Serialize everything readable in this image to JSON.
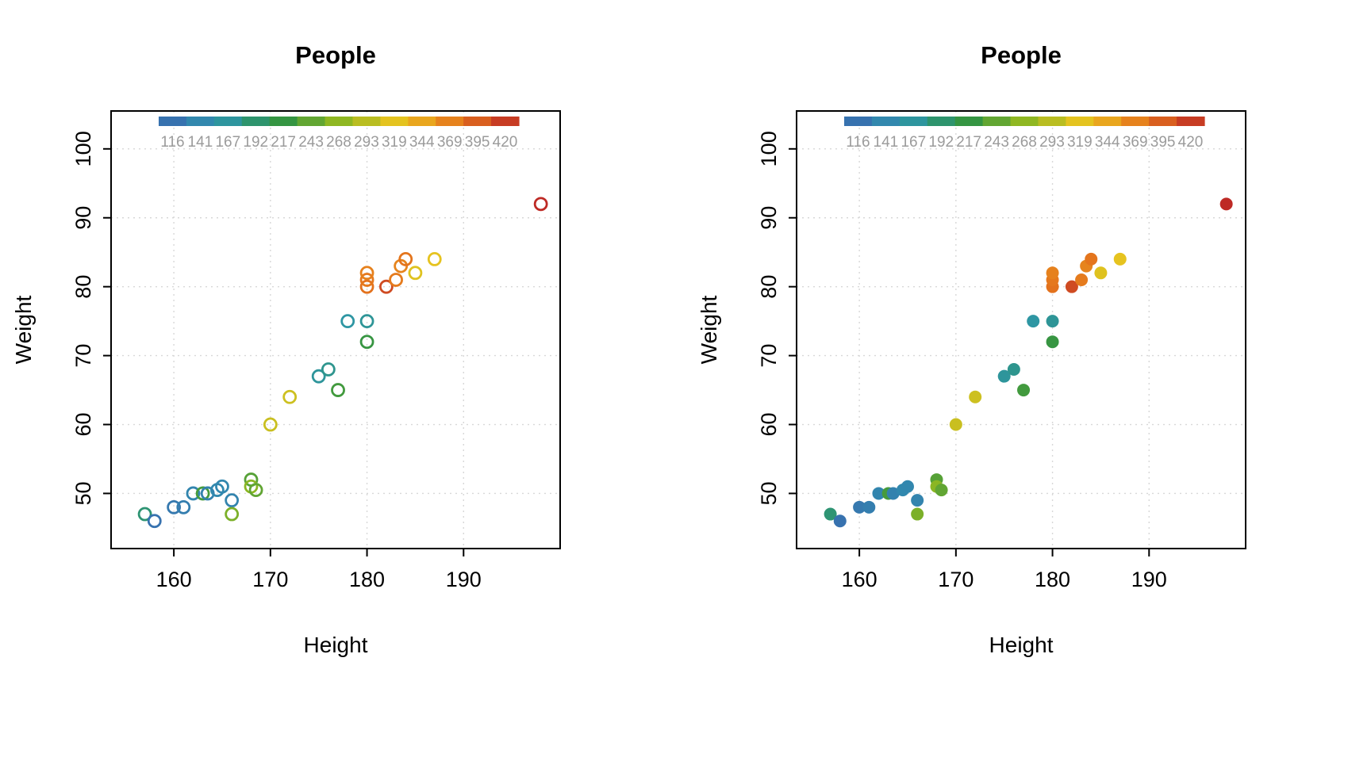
{
  "chart_data": {
    "type": "scatter",
    "title": "People",
    "xlabel": "Height",
    "ylabel": "Weight",
    "xlim": [
      153.5,
      200
    ],
    "ylim": [
      42,
      105.5
    ],
    "xticks": [
      160,
      170,
      180,
      190
    ],
    "yticks": [
      50,
      60,
      70,
      80,
      90,
      100
    ],
    "grid": true,
    "panels": [
      {
        "marker": "open",
        "description": "hollow circle markers (pch=1)"
      },
      {
        "marker": "filled",
        "description": "solid circle markers (pch=19)"
      }
    ],
    "colorbar": {
      "position": "top-inside",
      "min": 116,
      "max": 420,
      "tick_labels": [
        116,
        141,
        167,
        192,
        217,
        243,
        268,
        293,
        319,
        344,
        369,
        395,
        420
      ],
      "palette": [
        "#3A67AF",
        "#2E96AE",
        "#2E9245",
        "#8FB722",
        "#EBC41F",
        "#E5761D",
        "#BE2A25"
      ]
    },
    "points": [
      {
        "x": 157,
        "y": 47,
        "v": 195
      },
      {
        "x": 158,
        "y": 46,
        "v": 128
      },
      {
        "x": 160,
        "y": 48,
        "v": 135
      },
      {
        "x": 161,
        "y": 48,
        "v": 141
      },
      {
        "x": 162,
        "y": 50,
        "v": 148
      },
      {
        "x": 163,
        "y": 50,
        "v": 230
      },
      {
        "x": 163.5,
        "y": 50,
        "v": 145
      },
      {
        "x": 164.5,
        "y": 50.5,
        "v": 152
      },
      {
        "x": 165,
        "y": 51,
        "v": 150
      },
      {
        "x": 166,
        "y": 49,
        "v": 147
      },
      {
        "x": 166,
        "y": 47,
        "v": 258
      },
      {
        "x": 168,
        "y": 52,
        "v": 238
      },
      {
        "x": 168,
        "y": 51,
        "v": 266
      },
      {
        "x": 168.5,
        "y": 50.5,
        "v": 244
      },
      {
        "x": 170,
        "y": 60,
        "v": 300
      },
      {
        "x": 172,
        "y": 64,
        "v": 302
      },
      {
        "x": 175,
        "y": 67,
        "v": 176
      },
      {
        "x": 176,
        "y": 68,
        "v": 182
      },
      {
        "x": 177,
        "y": 65,
        "v": 228
      },
      {
        "x": 178,
        "y": 75,
        "v": 172
      },
      {
        "x": 180,
        "y": 75,
        "v": 178
      },
      {
        "x": 180,
        "y": 72,
        "v": 222
      },
      {
        "x": 180,
        "y": 80,
        "v": 372
      },
      {
        "x": 180,
        "y": 81,
        "v": 368
      },
      {
        "x": 180,
        "y": 82,
        "v": 362
      },
      {
        "x": 182,
        "y": 80,
        "v": 398
      },
      {
        "x": 183,
        "y": 81,
        "v": 366
      },
      {
        "x": 183.5,
        "y": 83,
        "v": 360
      },
      {
        "x": 184,
        "y": 84,
        "v": 370
      },
      {
        "x": 185,
        "y": 82,
        "v": 312
      },
      {
        "x": 187,
        "y": 84,
        "v": 316
      },
      {
        "x": 198,
        "y": 92,
        "v": 420
      }
    ]
  }
}
